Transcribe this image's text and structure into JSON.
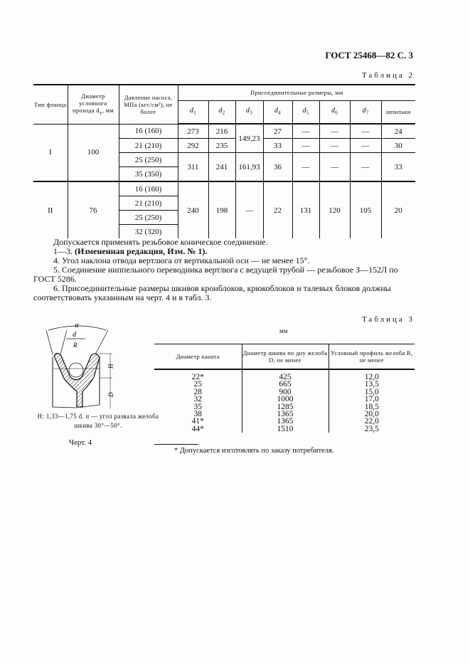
{
  "header": "ГОСТ 25468—82 С. 3",
  "table2": {
    "caption": "Таблица 2",
    "headers": {
      "type": "Тип фланца",
      "diameter": "Диаметр условного прохода d",
      "diameter_sub": "у",
      "diameter_unit": ", мм",
      "pressure": "Давление насоса, МПа (кгс/см²), не более",
      "connect": "Присоединительные размеры, мм",
      "cols": [
        "d1",
        "d2",
        "d3",
        "d4",
        "d5",
        "d6",
        "d7"
      ],
      "studs": "шпильки"
    },
    "rows": [
      {
        "type": "I",
        "diam": "100",
        "pressures": [
          "16 (160)",
          "21 (210)",
          "25 (250)",
          "35 (350)"
        ],
        "r1": [
          "273",
          "216",
          "149,23",
          "27",
          "—",
          "—",
          "—",
          "24"
        ],
        "r2": [
          "292",
          "235",
          "33",
          "—",
          "—",
          "—",
          "30"
        ],
        "r3": [
          "311",
          "241",
          "161,93",
          "36",
          "—",
          "—",
          "—",
          "33"
        ]
      },
      {
        "type": "II",
        "diam": "76",
        "pressures": [
          "16 (160)",
          "21 (210)",
          "25 (250)",
          "32 (320)"
        ],
        "r": [
          "240",
          "198",
          "—",
          "22",
          "131",
          "120",
          "105",
          "20"
        ]
      }
    ]
  },
  "paras": [
    "Допускается применять резьбовое коническое соединение.",
    "1—3.",
    "(Измененная редакция, Изм. № 1).",
    "4. Угол наклона отвода вертлюга от вертикальной оси — не менее 15°.",
    "5. Соединение ниппельного переводника вертлюга с ведущей трубой — резьбовое З—152Л по ГОСТ 5286.",
    "6. Присоединительные размеры шкивов кронблоков, крюкоблоков и талевых блоков должны соответствовать указанным на черт. 4 и в табл. 3."
  ],
  "figure": {
    "labels": {
      "alpha": "α",
      "d": "d",
      "R": "R",
      "H": "H",
      "D": "D"
    },
    "caption": "H: 1,33—1,75 d. α — угол развала желоба шкива 30°—50°.",
    "title": "Черт. 4"
  },
  "table3": {
    "caption": "Таблица 3",
    "unit": "мм",
    "headers": [
      "Диаметр каната",
      "Диаметр шкива по дну желоба D, не менее",
      "Условный профиль желоба R, не менее"
    ],
    "rows": [
      [
        "22*",
        "425",
        "12,0"
      ],
      [
        "25",
        "665",
        "13,5"
      ],
      [
        "28",
        "900",
        "15,0"
      ],
      [
        "32",
        "1000",
        "17,0"
      ],
      [
        "35",
        "1285",
        "18,5"
      ],
      [
        "38",
        "1365",
        "20,0"
      ],
      [
        "41*",
        "1365",
        "22,0"
      ],
      [
        "44*",
        "1510",
        "23,5"
      ]
    ],
    "footnote": "* Допускается изготовлять по заказу потребителя."
  }
}
